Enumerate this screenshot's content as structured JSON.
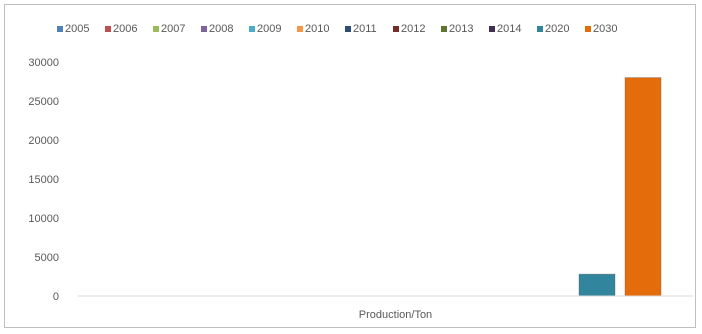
{
  "chart_data": {
    "type": "bar",
    "categories": [
      "Production/Ton"
    ],
    "ylim": [
      0,
      30000
    ],
    "yticks": [
      0,
      5000,
      10000,
      15000,
      20000,
      25000,
      30000
    ],
    "grid": false,
    "legend_position": "top",
    "series": [
      {
        "name": "2005",
        "color": "#4f81bd",
        "values": [
          0
        ]
      },
      {
        "name": "2006",
        "color": "#c0504d",
        "values": [
          0
        ]
      },
      {
        "name": "2007",
        "color": "#9bbb59",
        "values": [
          0
        ]
      },
      {
        "name": "2008",
        "color": "#8064a2",
        "values": [
          0
        ]
      },
      {
        "name": "2009",
        "color": "#4bacc6",
        "values": [
          0
        ]
      },
      {
        "name": "2010",
        "color": "#f79646",
        "values": [
          0
        ]
      },
      {
        "name": "2011",
        "color": "#2c4d75",
        "values": [
          0
        ]
      },
      {
        "name": "2012",
        "color": "#772c2a",
        "values": [
          0
        ]
      },
      {
        "name": "2013",
        "color": "#5f7530",
        "values": [
          0
        ]
      },
      {
        "name": "2014",
        "color": "#403152",
        "values": [
          0
        ]
      },
      {
        "name": "2020",
        "color": "#31859c",
        "values": [
          2800
        ]
      },
      {
        "name": "2030",
        "color": "#e46c0a",
        "values": [
          28000
        ]
      }
    ]
  }
}
